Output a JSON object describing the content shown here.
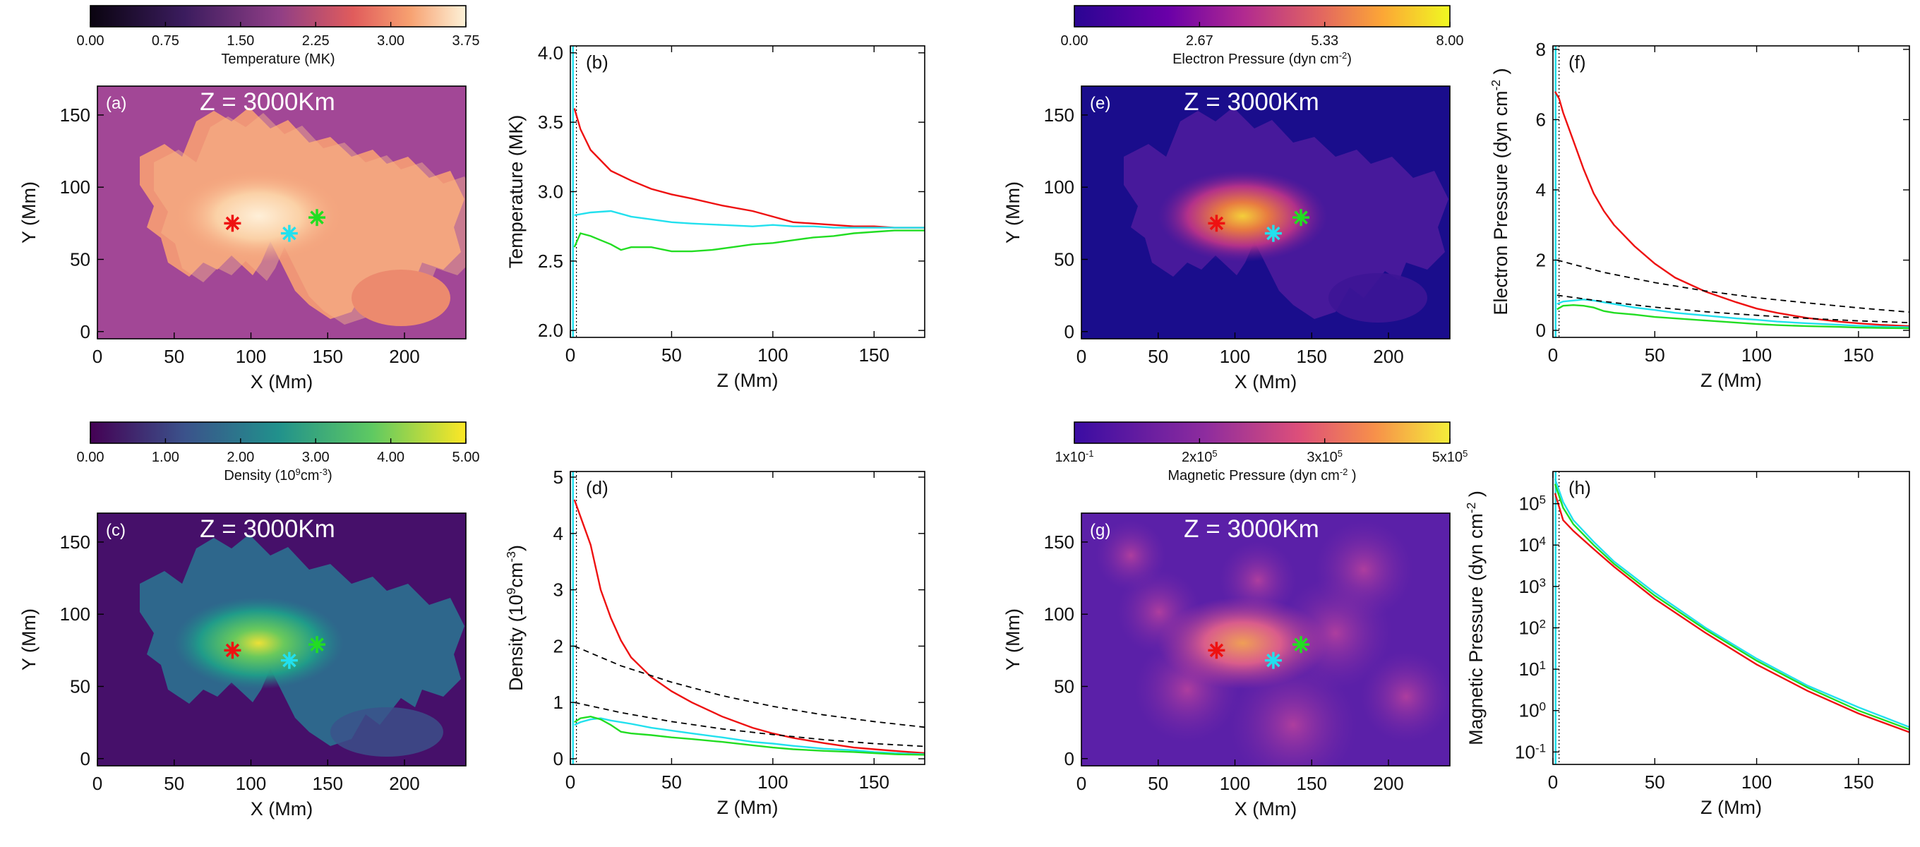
{
  "colors": {
    "red": "#ee1111",
    "cyan": "#22e0ee",
    "green": "#22dd22",
    "dashed": "#000000"
  },
  "map_title": "Z =  3000Km",
  "map_axes": {
    "xlabel": "X (Mm)",
    "ylabel": "Y (Mm)",
    "xticks": [
      "0",
      "50",
      "100",
      "150",
      "200"
    ],
    "yticks": [
      "0",
      "50",
      "100",
      "150"
    ]
  },
  "profile_xlabel": "Z (Mm)",
  "profile_xticks": [
    "0",
    "50",
    "100",
    "150"
  ],
  "colorbars": [
    {
      "id": "a",
      "label": "Temperature (MK)",
      "ticks": [
        "0.00",
        "0.75",
        "1.50",
        "2.25",
        "3.00",
        "3.75"
      ]
    },
    {
      "id": "e",
      "label": "Electron Pressure (dyn cm⁻²)",
      "ticks": [
        "0.00",
        "2.67",
        "5.33",
        "8.00"
      ]
    },
    {
      "id": "c",
      "label": "Density (10⁹cm⁻³)",
      "ticks": [
        "0.00",
        "1.00",
        "2.00",
        "3.00",
        "4.00",
        "5.00"
      ]
    },
    {
      "id": "g",
      "label": "Magnetic Pressure (dyn cm⁻²)",
      "ticks": [
        "1x10⁻¹",
        "2x10⁵",
        "3x10⁵",
        "5x10⁵"
      ]
    }
  ],
  "panel_labels": {
    "a": "(a)",
    "b": "(b)",
    "c": "(c)",
    "d": "(d)",
    "e": "(e)",
    "f": "(f)",
    "g": "(g)",
    "h": "(h)"
  },
  "chart_data": [
    {
      "panel": "(a)",
      "type": "heatmap",
      "title": "Z =  3000Km",
      "quantity": "Temperature (MK)",
      "xlabel": "X (Mm)",
      "ylabel": "Y (Mm)",
      "xlim": [
        0,
        240
      ],
      "ylim": [
        -5,
        170
      ],
      "markers": [
        {
          "color": "red",
          "x": 88,
          "y": 75
        },
        {
          "color": "cyan",
          "x": 125,
          "y": 68
        },
        {
          "color": "green",
          "x": 143,
          "y": 79
        }
      ]
    },
    {
      "panel": "(b)",
      "type": "line",
      "xlabel": "Z (Mm)",
      "ylabel": "Temperature (MK)",
      "xlim": [
        0,
        175
      ],
      "ylim": [
        1.95,
        4.05
      ],
      "yticks": [
        "2.0",
        "2.5",
        "3.0",
        "3.5",
        "4.0"
      ],
      "series": [
        {
          "name": "red",
          "x": [
            2,
            5,
            10,
            20,
            30,
            40,
            50,
            60,
            75,
            90,
            100,
            110,
            120,
            130,
            140,
            150,
            160,
            175
          ],
          "values": [
            3.6,
            3.45,
            3.3,
            3.15,
            3.08,
            3.02,
            2.98,
            2.95,
            2.9,
            2.86,
            2.82,
            2.78,
            2.77,
            2.76,
            2.75,
            2.75,
            2.74,
            2.74
          ]
        },
        {
          "name": "cyan",
          "x": [
            2,
            10,
            20,
            30,
            40,
            50,
            60,
            75,
            90,
            100,
            110,
            120,
            130,
            140,
            150,
            160,
            175
          ],
          "values": [
            2.83,
            2.85,
            2.86,
            2.82,
            2.8,
            2.78,
            2.77,
            2.76,
            2.75,
            2.76,
            2.75,
            2.75,
            2.74,
            2.74,
            2.74,
            2.74,
            2.74
          ]
        },
        {
          "name": "green",
          "x": [
            2,
            5,
            10,
            15,
            20,
            25,
            30,
            40,
            50,
            60,
            70,
            80,
            90,
            100,
            110,
            120,
            130,
            140,
            150,
            160,
            175
          ],
          "values": [
            2.6,
            2.7,
            2.68,
            2.65,
            2.62,
            2.58,
            2.6,
            2.6,
            2.57,
            2.57,
            2.58,
            2.6,
            2.62,
            2.63,
            2.65,
            2.67,
            2.68,
            2.7,
            2.71,
            2.72,
            2.72
          ]
        }
      ]
    },
    {
      "panel": "(c)",
      "type": "heatmap",
      "title": "Z =  3000Km",
      "quantity": "Density (10⁹cm⁻³)",
      "xlabel": "X (Mm)",
      "ylabel": "Y (Mm)",
      "xlim": [
        0,
        240
      ],
      "ylim": [
        -5,
        170
      ],
      "markers": [
        {
          "color": "red",
          "x": 88,
          "y": 75
        },
        {
          "color": "cyan",
          "x": 125,
          "y": 68
        },
        {
          "color": "green",
          "x": 143,
          "y": 79
        }
      ]
    },
    {
      "panel": "(d)",
      "type": "line",
      "xlabel": "Z (Mm)",
      "ylabel": "Density (10⁹cm⁻³)",
      "xlim": [
        0,
        175
      ],
      "ylim": [
        -0.1,
        5.1
      ],
      "yticks": [
        "0",
        "1",
        "2",
        "3",
        "4",
        "5"
      ],
      "series": [
        {
          "name": "red",
          "x": [
            2,
            5,
            10,
            15,
            20,
            25,
            30,
            40,
            50,
            60,
            75,
            90,
            100,
            110,
            125,
            140,
            150,
            160,
            175
          ],
          "values": [
            4.6,
            4.3,
            3.8,
            3.0,
            2.5,
            2.1,
            1.8,
            1.45,
            1.2,
            1.0,
            0.75,
            0.55,
            0.45,
            0.37,
            0.28,
            0.2,
            0.17,
            0.14,
            0.1
          ]
        },
        {
          "name": "cyan",
          "x": [
            2,
            5,
            10,
            15,
            20,
            30,
            40,
            50,
            60,
            75,
            90,
            100,
            110,
            125,
            140,
            150,
            160,
            175
          ],
          "values": [
            0.6,
            0.65,
            0.7,
            0.72,
            0.68,
            0.62,
            0.55,
            0.5,
            0.45,
            0.38,
            0.3,
            0.27,
            0.23,
            0.18,
            0.15,
            0.12,
            0.1,
            0.08
          ]
        },
        {
          "name": "green",
          "x": [
            2,
            5,
            10,
            15,
            20,
            25,
            30,
            40,
            50,
            60,
            75,
            90,
            100,
            110,
            125,
            140,
            150,
            160,
            175
          ],
          "values": [
            0.65,
            0.72,
            0.75,
            0.7,
            0.6,
            0.48,
            0.45,
            0.42,
            0.38,
            0.35,
            0.3,
            0.24,
            0.2,
            0.17,
            0.14,
            0.12,
            0.1,
            0.08,
            0.07
          ]
        },
        {
          "name": "dashed-upper",
          "x": [
            2,
            25,
            50,
            75,
            100,
            125,
            150,
            175
          ],
          "values": [
            2.0,
            1.65,
            1.36,
            1.12,
            0.93,
            0.78,
            0.66,
            0.56
          ]
        },
        {
          "name": "dashed-lower",
          "x": [
            2,
            25,
            50,
            75,
            100,
            125,
            150,
            175
          ],
          "values": [
            1.0,
            0.82,
            0.66,
            0.53,
            0.43,
            0.34,
            0.27,
            0.22
          ]
        }
      ]
    },
    {
      "panel": "(e)",
      "type": "heatmap",
      "title": "Z =  3000Km",
      "quantity": "Electron Pressure (dyn cm⁻²)",
      "xlabel": "X (Mm)",
      "ylabel": "Y (Mm)",
      "xlim": [
        0,
        240
      ],
      "ylim": [
        -5,
        170
      ],
      "markers": [
        {
          "color": "red",
          "x": 88,
          "y": 75
        },
        {
          "color": "cyan",
          "x": 125,
          "y": 68
        },
        {
          "color": "green",
          "x": 143,
          "y": 79
        }
      ]
    },
    {
      "panel": "(f)",
      "type": "line",
      "xlabel": "Z (Mm)",
      "ylabel": "Electron Pressure (dyn cm⁻²)",
      "xlim": [
        0,
        175
      ],
      "ylim": [
        -0.2,
        8.1
      ],
      "yticks": [
        "0",
        "2",
        "4",
        "6",
        "8"
      ],
      "series": [
        {
          "name": "red",
          "x": [
            1,
            3,
            5,
            10,
            15,
            20,
            25,
            30,
            40,
            50,
            60,
            75,
            90,
            100,
            110,
            125,
            140,
            150,
            160,
            175
          ],
          "values": [
            6.8,
            6.6,
            6.2,
            5.4,
            4.6,
            3.9,
            3.4,
            3.0,
            2.4,
            1.9,
            1.5,
            1.1,
            0.8,
            0.62,
            0.5,
            0.35,
            0.25,
            0.2,
            0.16,
            0.12
          ]
        },
        {
          "name": "cyan",
          "x": [
            2,
            5,
            10,
            15,
            20,
            30,
            40,
            50,
            60,
            75,
            90,
            100,
            110,
            125,
            140,
            150,
            160,
            175
          ],
          "values": [
            0.75,
            0.82,
            0.85,
            0.88,
            0.85,
            0.75,
            0.65,
            0.58,
            0.5,
            0.42,
            0.34,
            0.3,
            0.25,
            0.2,
            0.16,
            0.13,
            0.11,
            0.09
          ]
        },
        {
          "name": "green",
          "x": [
            2,
            5,
            10,
            15,
            20,
            25,
            30,
            40,
            50,
            60,
            75,
            90,
            100,
            110,
            125,
            140,
            150,
            160,
            175
          ],
          "values": [
            0.6,
            0.7,
            0.72,
            0.7,
            0.65,
            0.55,
            0.5,
            0.45,
            0.38,
            0.34,
            0.28,
            0.22,
            0.18,
            0.15,
            0.12,
            0.1,
            0.08,
            0.07,
            0.06
          ]
        },
        {
          "name": "dashed-upper",
          "x": [
            2,
            25,
            50,
            75,
            100,
            125,
            150,
            175
          ],
          "values": [
            2.0,
            1.65,
            1.36,
            1.12,
            0.93,
            0.78,
            0.64,
            0.52
          ]
        },
        {
          "name": "dashed-lower",
          "x": [
            2,
            25,
            50,
            75,
            100,
            125,
            150,
            175
          ],
          "values": [
            1.0,
            0.82,
            0.66,
            0.53,
            0.43,
            0.34,
            0.27,
            0.22
          ]
        }
      ]
    },
    {
      "panel": "(g)",
      "type": "heatmap",
      "title": "Z =  3000Km",
      "quantity": "Magnetic Pressure (dyn cm⁻²)",
      "xlabel": "X (Mm)",
      "ylabel": "Y (Mm)",
      "xlim": [
        0,
        240
      ],
      "ylim": [
        -5,
        170
      ],
      "markers": [
        {
          "color": "red",
          "x": 88,
          "y": 75
        },
        {
          "color": "cyan",
          "x": 125,
          "y": 68
        },
        {
          "color": "green",
          "x": 143,
          "y": 79
        }
      ]
    },
    {
      "panel": "(h)",
      "type": "line",
      "scale": "log",
      "xlabel": "Z (Mm)",
      "ylabel": "Magnetic Pressure (dyn cm⁻²)",
      "xlim": [
        0,
        175
      ],
      "ylim": [
        0.05,
        600000
      ],
      "yticks": [
        {
          "base": "10",
          "exp": "-1",
          "value": 0.1
        },
        {
          "base": "10",
          "exp": "0",
          "value": 1
        },
        {
          "base": "10",
          "exp": "1",
          "value": 10
        },
        {
          "base": "10",
          "exp": "2",
          "value": 100
        },
        {
          "base": "10",
          "exp": "3",
          "value": 1000
        },
        {
          "base": "10",
          "exp": "4",
          "value": 10000
        },
        {
          "base": "10",
          "exp": "5",
          "value": 100000
        }
      ],
      "series": [
        {
          "name": "cyan",
          "x": [
            1,
            5,
            10,
            20,
            30,
            50,
            75,
            100,
            125,
            150,
            175
          ],
          "values": [
            400000,
            110000,
            40000,
            12000,
            4000,
            700,
            100,
            18,
            4,
            1.2,
            0.4
          ]
        },
        {
          "name": "green",
          "x": [
            1,
            5,
            10,
            20,
            30,
            50,
            75,
            100,
            125,
            150,
            175
          ],
          "values": [
            300000,
            80000,
            32000,
            10000,
            3500,
            600,
            90,
            16,
            3.6,
            1.0,
            0.35
          ]
        },
        {
          "name": "red",
          "x": [
            1,
            5,
            10,
            20,
            30,
            50,
            75,
            100,
            125,
            150,
            175
          ],
          "values": [
            180000,
            40000,
            22000,
            8000,
            3000,
            500,
            75,
            13,
            3.0,
            0.85,
            0.3
          ]
        }
      ]
    }
  ]
}
